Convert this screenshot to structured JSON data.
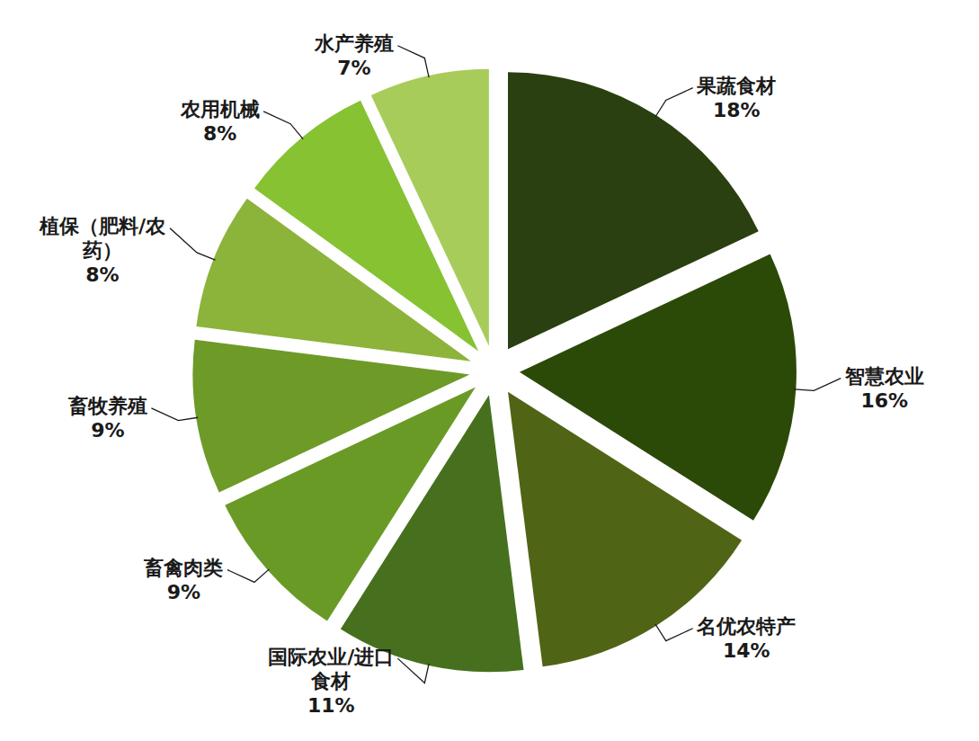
{
  "chart_data": {
    "type": "pie",
    "categories": [
      "果蔬食材",
      "智慧农业",
      "名优农特产",
      "国际农业/进口食材",
      "畜禽肉类",
      "畜牧养殖",
      "植保（肥料/农药）",
      "农用机械",
      "水产养殖"
    ],
    "values": [
      18,
      16,
      14,
      11,
      9,
      9,
      8,
      8,
      7
    ],
    "value_labels": [
      "18%",
      "16%",
      "14%",
      "11%",
      "9%",
      "9%",
      "8%",
      "8%",
      "7%"
    ],
    "colors": [
      "#2a4010",
      "#2b4a08",
      "#506415",
      "#46701e",
      "#6a9a26",
      "#6e9a28",
      "#8cb33a",
      "#86c232",
      "#a8cc5a"
    ],
    "data_labels": true
  }
}
